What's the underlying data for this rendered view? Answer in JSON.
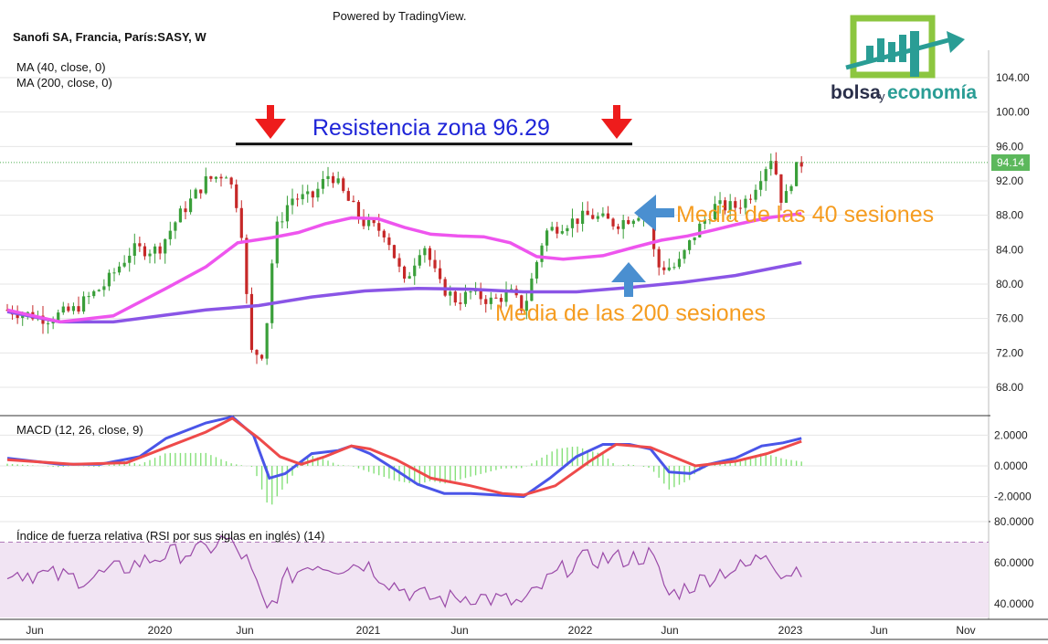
{
  "header": {
    "powered_by": "Powered by TradingView.",
    "symbol": "Sanofi SA, Francia, París:SASY, W",
    "ma40_label": "MA (40, close, 0)",
    "ma200_label": "MA (200, close, 0)"
  },
  "logo": {
    "text_dark": "bolsa",
    "text_small": "y",
    "text_green": "economía"
  },
  "annotations": {
    "resistance": "Resistencia zona 96.29",
    "ma40_note": "Media de las 40 sesiones",
    "ma200_note": "Media de las 200 sesiones"
  },
  "colors": {
    "up": "#3a9f3a",
    "down": "#c62828",
    "ma40": "#ee55ee",
    "ma200": "#8a55e6",
    "macd": "#4a55e8",
    "signal": "#ee4a4a",
    "hist": "#86e07a",
    "rsi": "#9a4aa8",
    "rsi_band": "#f1e4f3",
    "note_text": "#f59c20",
    "resistance_text": "#1f25d8",
    "arrow_red": "#ee1c1c",
    "arrow_blue": "#4a8fd0"
  },
  "chart_data": [
    {
      "type": "candlestick",
      "title": "Sanofi SA, Francia, París:SASY, W",
      "timeframe": "W",
      "ylim": [
        66,
        106
      ],
      "y_ticks": [
        "104.00",
        "100.00",
        "96.00",
        "92.00",
        "88.00",
        "84.00",
        "80.00",
        "76.00",
        "72.00",
        "68.00"
      ],
      "last_price": "94.14",
      "resistance": 96.29,
      "x_tick_labels": [
        "Jun",
        "2020",
        "Jun",
        "2021",
        "Jun",
        "2022",
        "Jun",
        "2023",
        "Jun",
        "Nov"
      ],
      "series": [
        {
          "name": "MA (40, close, 0)",
          "points": [
            [
              2019.25,
              77.0
            ],
            [
              2019.45,
              75.6
            ],
            [
              2019.65,
              76.3
            ],
            [
              2019.85,
              79.5
            ],
            [
              2020.0,
              82.0
            ],
            [
              2020.12,
              84.8
            ],
            [
              2020.25,
              85.4
            ],
            [
              2020.35,
              86.0
            ],
            [
              2020.45,
              87.0
            ],
            [
              2020.55,
              87.7
            ],
            [
              2020.65,
              87.6
            ],
            [
              2020.75,
              86.6
            ],
            [
              2020.85,
              85.8
            ],
            [
              2020.95,
              85.6
            ],
            [
              2021.05,
              85.5
            ],
            [
              2021.15,
              84.8
            ],
            [
              2021.25,
              83.2
            ],
            [
              2021.35,
              82.9
            ],
            [
              2021.5,
              83.3
            ],
            [
              2021.62,
              84.3
            ],
            [
              2021.72,
              85.1
            ],
            [
              2021.82,
              85.6
            ],
            [
              2021.92,
              86.3
            ],
            [
              2022.0,
              86.9
            ],
            [
              2022.12,
              87.7
            ],
            [
              2022.25,
              88.2
            ]
          ]
        },
        {
          "name": "MA (200, close, 0)",
          "points": [
            [
              2019.25,
              76.8
            ],
            [
              2019.45,
              75.6
            ],
            [
              2019.65,
              75.6
            ],
            [
              2019.85,
              76.4
            ],
            [
              2020.0,
              77.0
            ],
            [
              2020.2,
              77.5
            ],
            [
              2020.4,
              78.5
            ],
            [
              2020.6,
              79.2
            ],
            [
              2020.8,
              79.5
            ],
            [
              2021.0,
              79.4
            ],
            [
              2021.2,
              79.1
            ],
            [
              2021.4,
              79.1
            ],
            [
              2021.6,
              79.6
            ],
            [
              2021.8,
              80.2
            ],
            [
              2022.0,
              81.0
            ],
            [
              2022.15,
              81.9
            ],
            [
              2022.25,
              82.5
            ]
          ]
        }
      ]
    },
    {
      "type": "line",
      "title": "MACD (12, 26, close, 9)",
      "ylim": [
        -3.5,
        3.5
      ],
      "y_ticks": [
        "2.0000",
        "0.0000",
        "-2.0000"
      ],
      "series": [
        {
          "name": "MACD",
          "points": [
            [
              2019.25,
              0.5
            ],
            [
              2019.45,
              0.1
            ],
            [
              2019.6,
              0.1
            ],
            [
              2019.75,
              0.6
            ],
            [
              2019.85,
              1.8
            ],
            [
              2020.0,
              2.8
            ],
            [
              2020.1,
              3.2
            ],
            [
              2020.18,
              2.0
            ],
            [
              2020.24,
              -0.8
            ],
            [
              2020.3,
              -0.5
            ],
            [
              2020.4,
              0.8
            ],
            [
              2020.5,
              1.0
            ],
            [
              2020.55,
              1.3
            ],
            [
              2020.62,
              0.8
            ],
            [
              2020.72,
              -0.3
            ],
            [
              2020.8,
              -1.2
            ],
            [
              2020.9,
              -1.8
            ],
            [
              2021.0,
              -1.8
            ],
            [
              2021.1,
              -1.9
            ],
            [
              2021.2,
              -2.0
            ],
            [
              2021.3,
              -0.8
            ],
            [
              2021.4,
              0.6
            ],
            [
              2021.5,
              1.4
            ],
            [
              2021.6,
              1.4
            ],
            [
              2021.68,
              1.1
            ],
            [
              2021.75,
              -0.4
            ],
            [
              2021.83,
              -0.5
            ],
            [
              2021.9,
              0.1
            ],
            [
              2022.0,
              0.5
            ],
            [
              2022.1,
              1.3
            ],
            [
              2022.18,
              1.5
            ],
            [
              2022.25,
              1.8
            ]
          ]
        },
        {
          "name": "Signal",
          "points": [
            [
              2019.25,
              0.4
            ],
            [
              2019.5,
              0.1
            ],
            [
              2019.7,
              0.2
            ],
            [
              2019.85,
              1.2
            ],
            [
              2020.0,
              2.2
            ],
            [
              2020.1,
              3.1
            ],
            [
              2020.2,
              1.8
            ],
            [
              2020.28,
              0.6
            ],
            [
              2020.36,
              0.1
            ],
            [
              2020.45,
              0.6
            ],
            [
              2020.55,
              1.3
            ],
            [
              2020.62,
              1.1
            ],
            [
              2020.72,
              0.4
            ],
            [
              2020.85,
              -0.8
            ],
            [
              2021.0,
              -1.3
            ],
            [
              2021.12,
              -1.8
            ],
            [
              2021.2,
              -1.9
            ],
            [
              2021.32,
              -1.3
            ],
            [
              2021.45,
              0.3
            ],
            [
              2021.55,
              1.4
            ],
            [
              2021.68,
              1.2
            ],
            [
              2021.75,
              0.7
            ],
            [
              2021.85,
              0.0
            ],
            [
              2022.0,
              0.3
            ],
            [
              2022.12,
              0.8
            ],
            [
              2022.25,
              1.6
            ]
          ]
        }
      ]
    },
    {
      "type": "line",
      "title": "Índice de fuerza relativa (RSI por sus siglas en inglés) (14)",
      "ylim": [
        30,
        80
      ],
      "y_ticks": [
        "80.0000",
        "60.0000",
        "40.0000"
      ],
      "band": [
        30,
        70
      ],
      "series": [
        {
          "name": "RSI",
          "points": [
            [
              2019.25,
              56
            ],
            [
              2019.4,
              54
            ],
            [
              2019.55,
              52
            ],
            [
              2019.7,
              58
            ],
            [
              2019.85,
              64
            ],
            [
              2020.0,
              66
            ],
            [
              2020.07,
              72
            ],
            [
              2020.15,
              62
            ],
            [
              2020.23,
              36
            ],
            [
              2020.3,
              52
            ],
            [
              2020.4,
              60
            ],
            [
              2020.5,
              58
            ],
            [
              2020.6,
              60
            ],
            [
              2020.7,
              50
            ],
            [
              2020.8,
              44
            ],
            [
              2020.9,
              42
            ],
            [
              2021.0,
              44
            ],
            [
              2021.1,
              42
            ],
            [
              2021.2,
              40
            ],
            [
              2021.3,
              52
            ],
            [
              2021.4,
              61
            ],
            [
              2021.5,
              62
            ],
            [
              2021.6,
              62
            ],
            [
              2021.68,
              64
            ],
            [
              2021.75,
              44
            ],
            [
              2021.85,
              50
            ],
            [
              2021.95,
              56
            ],
            [
              2022.05,
              58
            ],
            [
              2022.12,
              66
            ],
            [
              2022.18,
              54
            ],
            [
              2022.25,
              58
            ]
          ]
        }
      ]
    }
  ]
}
